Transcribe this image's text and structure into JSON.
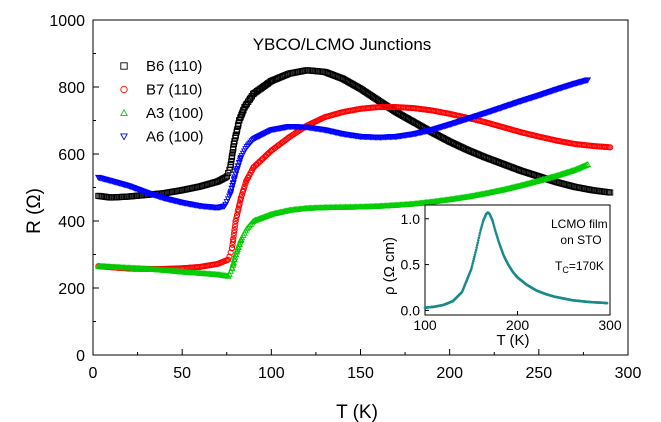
{
  "chart_data": [
    {
      "type": "scatter",
      "title": "YBCO/LCMO Junctions",
      "xlabel": "T (K)",
      "ylabel": "R (Ω)",
      "xlim": [
        0,
        300
      ],
      "ylim": [
        0,
        1000
      ],
      "xticks": [
        "0",
        "50",
        "100",
        "150",
        "200",
        "250",
        "300"
      ],
      "yticks": [
        "0",
        "200",
        "400",
        "600",
        "800",
        "1000"
      ],
      "legend_position": "top-left",
      "series": [
        {
          "name": "B6 (110)",
          "color": "#000000",
          "marker": "square",
          "x": [
            3,
            10,
            20,
            30,
            40,
            50,
            60,
            70,
            75,
            77,
            79,
            82,
            85,
            90,
            100,
            110,
            120,
            130,
            140,
            150,
            160,
            170,
            180,
            190,
            200,
            210,
            220,
            230,
            240,
            250,
            260,
            270,
            280,
            290
          ],
          "y": [
            475,
            470,
            473,
            478,
            483,
            492,
            503,
            518,
            532,
            560,
            630,
            700,
            740,
            780,
            818,
            840,
            850,
            845,
            825,
            795,
            760,
            725,
            695,
            665,
            637,
            612,
            590,
            570,
            550,
            533,
            516,
            502,
            492,
            485
          ]
        },
        {
          "name": "B7 (110)",
          "color": "#ff0000",
          "marker": "circle",
          "x": [
            3,
            10,
            20,
            30,
            40,
            50,
            60,
            70,
            76,
            78,
            80,
            83,
            86,
            90,
            100,
            110,
            120,
            130,
            140,
            150,
            160,
            170,
            180,
            190,
            200,
            210,
            220,
            230,
            240,
            250,
            260,
            270,
            280,
            290
          ],
          "y": [
            265,
            262,
            258,
            257,
            257,
            259,
            263,
            272,
            285,
            320,
            400,
            470,
            520,
            560,
            610,
            650,
            685,
            710,
            725,
            735,
            740,
            740,
            737,
            730,
            720,
            708,
            695,
            680,
            665,
            652,
            640,
            630,
            624,
            620
          ]
        },
        {
          "name": "A3 (100)",
          "color": "#00cc00",
          "marker": "triangle-up",
          "x": [
            3,
            10,
            20,
            30,
            40,
            50,
            60,
            70,
            76,
            78,
            80,
            83,
            86,
            90,
            100,
            110,
            120,
            130,
            140,
            150,
            160,
            170,
            180,
            190,
            200,
            210,
            220,
            230,
            240,
            250,
            260,
            270,
            278
          ],
          "y": [
            265,
            263,
            260,
            257,
            253,
            248,
            244,
            240,
            235,
            260,
            300,
            345,
            375,
            400,
            420,
            432,
            438,
            440,
            441,
            442,
            444,
            447,
            451,
            457,
            464,
            472,
            482,
            493,
            506,
            520,
            535,
            552,
            570
          ]
        },
        {
          "name": "A6 (100)",
          "color": "#0000ff",
          "marker": "triangle-down",
          "x": [
            3,
            10,
            20,
            30,
            40,
            50,
            60,
            70,
            74,
            77,
            80,
            83,
            86,
            90,
            100,
            110,
            120,
            130,
            140,
            150,
            160,
            170,
            180,
            190,
            200,
            210,
            220,
            230,
            240,
            250,
            260,
            270,
            278
          ],
          "y": [
            530,
            520,
            505,
            485,
            468,
            455,
            445,
            440,
            445,
            480,
            540,
            590,
            620,
            645,
            672,
            682,
            680,
            672,
            660,
            652,
            650,
            652,
            660,
            672,
            688,
            705,
            722,
            740,
            758,
            775,
            793,
            810,
            822
          ]
        }
      ]
    },
    {
      "type": "scatter",
      "title": "LCMO film on STO",
      "annotation": "T",
      "annotation_subscript": "C",
      "annotation_value": "=170K",
      "xlabel": "T (K)",
      "ylabel": "ρ (Ω cm)",
      "xlim": [
        100,
        300
      ],
      "ylim": [
        -0.05,
        1.15
      ],
      "xticks": [
        "100",
        "200",
        "300"
      ],
      "yticks": [
        "0.0",
        "0.5",
        "1.0"
      ],
      "series": [
        {
          "color": "#1a8a8a",
          "marker": "dot",
          "x": [
            100,
            110,
            120,
            130,
            140,
            150,
            155,
            160,
            163,
            166,
            168,
            170,
            173,
            176,
            180,
            185,
            190,
            195,
            200,
            210,
            220,
            230,
            240,
            250,
            260,
            270,
            280,
            290,
            297
          ],
          "y": [
            0.03,
            0.04,
            0.06,
            0.1,
            0.2,
            0.45,
            0.65,
            0.87,
            0.98,
            1.05,
            1.07,
            1.05,
            0.98,
            0.87,
            0.74,
            0.6,
            0.5,
            0.42,
            0.36,
            0.28,
            0.22,
            0.18,
            0.15,
            0.13,
            0.11,
            0.1,
            0.09,
            0.085,
            0.08
          ]
        }
      ]
    }
  ]
}
